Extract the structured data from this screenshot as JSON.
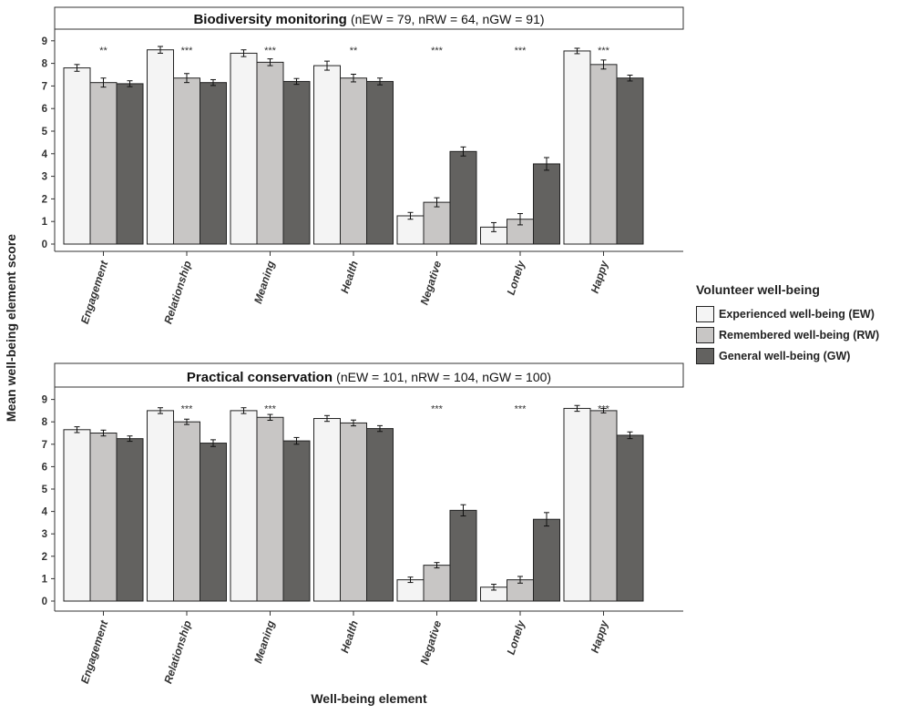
{
  "chart_data": {
    "type": "bar",
    "ylabel": "Mean well-being element score",
    "xlabel": "Well-being element",
    "ylim": [
      0,
      9
    ],
    "yticks": [
      "0",
      "1",
      "2",
      "3",
      "4",
      "5",
      "6",
      "7",
      "8",
      "9"
    ],
    "categories": [
      "Engagement",
      "Relationship",
      "Meaning",
      "Health",
      "Negative",
      "Lonely",
      "Happy"
    ],
    "legend": {
      "title": "Volunteer well-being",
      "position": "right",
      "items": [
        {
          "label": "Experienced well-being (EW)",
          "color": "#f4f4f4"
        },
        {
          "label": "Remembered well-being (RW)",
          "color": "#c8c6c5"
        },
        {
          "label": "General well-being (GW)",
          "color": "#636260"
        }
      ]
    },
    "panels": [
      {
        "title": "Biodiversity monitoring",
        "n_text": "(nEW = 79, nRW = 64, nGW = 91)",
        "series": [
          {
            "name": "Experienced well-being (EW)",
            "values": [
              7.8,
              8.6,
              8.45,
              7.9,
              1.25,
              0.75,
              8.55
            ],
            "errors": [
              0.15,
              0.15,
              0.15,
              0.2,
              0.15,
              0.2,
              0.12
            ]
          },
          {
            "name": "Remembered well-being (RW)",
            "values": [
              7.15,
              7.35,
              8.05,
              7.35,
              1.85,
              1.1,
              7.95
            ],
            "errors": [
              0.2,
              0.2,
              0.15,
              0.17,
              0.2,
              0.25,
              0.2
            ]
          },
          {
            "name": "General well-being (GW)",
            "values": [
              7.1,
              7.15,
              7.2,
              7.2,
              4.1,
              3.55,
              7.35
            ],
            "errors": [
              0.13,
              0.13,
              0.13,
              0.15,
              0.2,
              0.28,
              0.13
            ]
          }
        ],
        "significance": [
          "**",
          "***",
          "***",
          "**",
          "***",
          "***",
          "***"
        ]
      },
      {
        "title": "Practical conservation",
        "n_text": "(nEW = 101, nRW = 104, nGW = 100)",
        "series": [
          {
            "name": "Experienced well-being (EW)",
            "values": [
              7.65,
              8.5,
              8.5,
              8.15,
              0.95,
              0.62,
              8.6
            ],
            "errors": [
              0.13,
              0.13,
              0.13,
              0.13,
              0.12,
              0.13,
              0.13
            ]
          },
          {
            "name": "Remembered well-being (RW)",
            "values": [
              7.5,
              8.0,
              8.2,
              7.95,
              1.6,
              0.95,
              8.5
            ],
            "errors": [
              0.13,
              0.12,
              0.13,
              0.13,
              0.12,
              0.15,
              0.1
            ]
          },
          {
            "name": "General well-being (GW)",
            "values": [
              7.25,
              7.05,
              7.15,
              7.7,
              4.05,
              3.65,
              7.4
            ],
            "errors": [
              0.12,
              0.15,
              0.15,
              0.13,
              0.25,
              0.3,
              0.15
            ]
          }
        ],
        "significance": [
          "",
          "***",
          "***",
          "",
          "***",
          "***",
          "***"
        ]
      }
    ]
  }
}
